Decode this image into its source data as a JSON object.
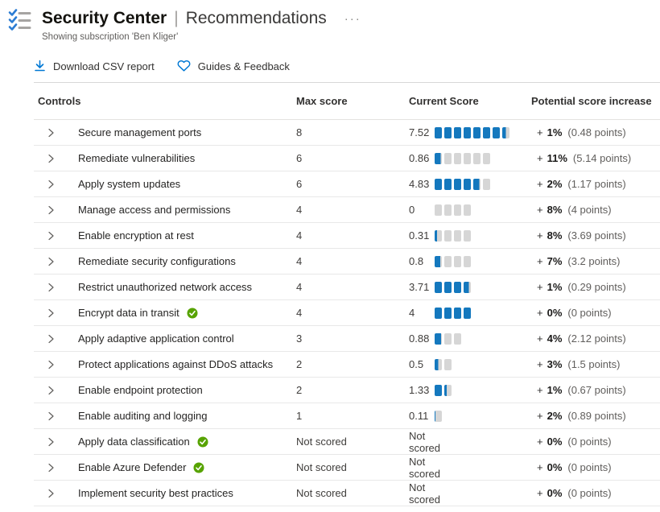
{
  "header": {
    "title_primary": "Security Center",
    "title_separator": "|",
    "title_secondary": "Recommendations",
    "more_icon_glyph": "···",
    "subtitle": "Showing subscription 'Ben Kliger'"
  },
  "toolbar": {
    "download_label": "Download CSV report",
    "guides_label": "Guides & Feedback"
  },
  "table": {
    "columns": [
      "Controls",
      "Max score",
      "Current Score",
      "Potential score increase"
    ],
    "not_scored_label": "Not scored",
    "rows": [
      {
        "name": "Secure management ports",
        "completed": false,
        "scored": true,
        "max": 8,
        "current": 7.52,
        "max_label": "8",
        "current_label": "7.52",
        "plus": "+",
        "pct": "1%",
        "points": "(0.48 points)"
      },
      {
        "name": "Remediate vulnerabilities",
        "completed": false,
        "scored": true,
        "max": 6,
        "current": 0.86,
        "max_label": "6",
        "current_label": "0.86",
        "plus": "+",
        "pct": "11%",
        "points": "(5.14 points)"
      },
      {
        "name": "Apply system updates",
        "completed": false,
        "scored": true,
        "max": 6,
        "current": 4.83,
        "max_label": "6",
        "current_label": "4.83",
        "plus": "+",
        "pct": "2%",
        "points": "(1.17 points)"
      },
      {
        "name": "Manage access and permissions",
        "completed": false,
        "scored": true,
        "max": 4,
        "current": 0,
        "max_label": "4",
        "current_label": "0",
        "plus": "+",
        "pct": "8%",
        "points": "(4 points)"
      },
      {
        "name": "Enable encryption at rest",
        "completed": false,
        "scored": true,
        "max": 4,
        "current": 0.31,
        "max_label": "4",
        "current_label": "0.31",
        "plus": "+",
        "pct": "8%",
        "points": "(3.69 points)"
      },
      {
        "name": "Remediate security configurations",
        "completed": false,
        "scored": true,
        "max": 4,
        "current": 0.8,
        "max_label": "4",
        "current_label": "0.8",
        "plus": "+",
        "pct": "7%",
        "points": "(3.2 points)"
      },
      {
        "name": "Restrict unauthorized network access",
        "completed": false,
        "scored": true,
        "max": 4,
        "current": 3.71,
        "max_label": "4",
        "current_label": "3.71",
        "plus": "+",
        "pct": "1%",
        "points": "(0.29 points)"
      },
      {
        "name": "Encrypt data in transit",
        "completed": true,
        "scored": true,
        "max": 4,
        "current": 4,
        "max_label": "4",
        "current_label": "4",
        "plus": "+",
        "pct": "0%",
        "points": "(0 points)"
      },
      {
        "name": "Apply adaptive application control",
        "completed": false,
        "scored": true,
        "max": 3,
        "current": 0.88,
        "max_label": "3",
        "current_label": "0.88",
        "plus": "+",
        "pct": "4%",
        "points": "(2.12 points)"
      },
      {
        "name": "Protect applications against DDoS attacks",
        "completed": false,
        "scored": true,
        "max": 2,
        "current": 0.5,
        "max_label": "2",
        "current_label": "0.5",
        "plus": "+",
        "pct": "3%",
        "points": "(1.5 points)"
      },
      {
        "name": "Enable endpoint protection",
        "completed": false,
        "scored": true,
        "max": 2,
        "current": 1.33,
        "max_label": "2",
        "current_label": "1.33",
        "plus": "+",
        "pct": "1%",
        "points": "(0.67 points)"
      },
      {
        "name": "Enable auditing and logging",
        "completed": false,
        "scored": true,
        "max": 1,
        "current": 0.11,
        "max_label": "1",
        "current_label": "0.11",
        "plus": "+",
        "pct": "2%",
        "points": "(0.89 points)"
      },
      {
        "name": "Apply data classification",
        "completed": true,
        "scored": false,
        "max": 0,
        "current": 0,
        "max_label": "Not scored",
        "current_label": "Not scored",
        "plus": "+",
        "pct": "0%",
        "points": "(0 points)"
      },
      {
        "name": "Enable Azure Defender",
        "completed": true,
        "scored": false,
        "max": 0,
        "current": 0,
        "max_label": "Not scored",
        "current_label": "Not scored",
        "plus": "+",
        "pct": "0%",
        "points": "(0 points)"
      },
      {
        "name": "Implement security best practices",
        "completed": false,
        "scored": false,
        "max": 0,
        "current": 0,
        "max_label": "Not scored",
        "current_label": "Not scored",
        "plus": "+",
        "pct": "0%",
        "points": "(0 points)"
      }
    ]
  },
  "colors": {
    "accent_blue": "#0078d4",
    "bar_blue": "#1478be",
    "bar_gray": "#d6d6d6",
    "complete_green": "#57a300"
  }
}
